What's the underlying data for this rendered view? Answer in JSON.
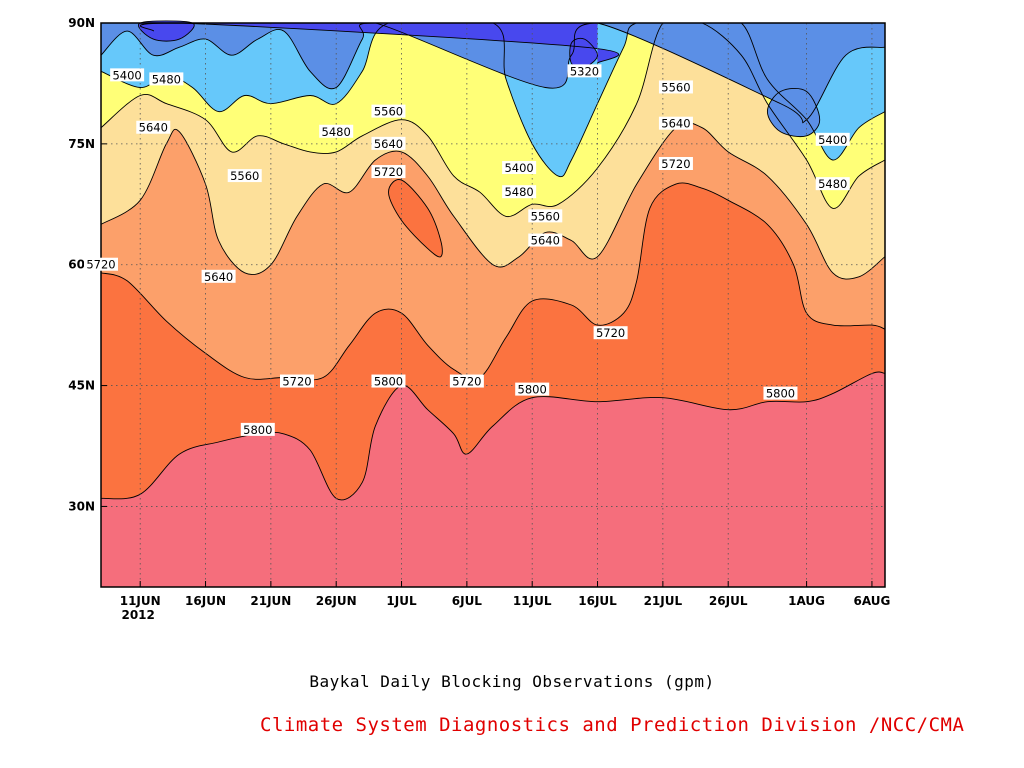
{
  "chart_data": {
    "type": "heatmap",
    "subtype": "filled-contour",
    "title": "Baykal Daily Blocking Observations (gpm)",
    "credit": "Climate System Diagnostics and Prediction Division /NCC/CMA",
    "x_axis": {
      "kind": "date",
      "range": [
        "2012-06-08",
        "2012-08-07"
      ],
      "ticks": [
        {
          "date": "2012-06-11",
          "label": "11JUN",
          "sublabel": "2012"
        },
        {
          "date": "2012-06-16",
          "label": "16JUN"
        },
        {
          "date": "2012-06-21",
          "label": "21JUN"
        },
        {
          "date": "2012-06-26",
          "label": "26JUN"
        },
        {
          "date": "2012-07-01",
          "label": "1JUL"
        },
        {
          "date": "2012-07-06",
          "label": "6JUL"
        },
        {
          "date": "2012-07-11",
          "label": "11JUL"
        },
        {
          "date": "2012-07-16",
          "label": "16JUL"
        },
        {
          "date": "2012-07-21",
          "label": "21JUL"
        },
        {
          "date": "2012-07-26",
          "label": "26JUL"
        },
        {
          "date": "2012-08-01",
          "label": "1AUG"
        },
        {
          "date": "2012-08-06",
          "label": "6AUG"
        }
      ]
    },
    "y_axis": {
      "kind": "latitude",
      "range": [
        20,
        90
      ],
      "ticks": [
        {
          "value": 30,
          "label": "30N"
        },
        {
          "value": 45,
          "label": "45N"
        },
        {
          "value": 60,
          "label": "60N"
        },
        {
          "value": 75,
          "label": "75N"
        },
        {
          "value": 90,
          "label": "90N"
        }
      ]
    },
    "grid": true,
    "levels": [
      5320,
      5400,
      5480,
      5560,
      5640,
      5720,
      5800
    ],
    "fill_colors": [
      "#4848ee",
      "#5b8fe6",
      "#66c8fa",
      "#ffff77",
      "#fde09a",
      "#fca06a",
      "#fb7340",
      "#f56e7c"
    ],
    "contours": [
      {
        "level": 5800,
        "points": [
          [
            "2012-06-08",
            31
          ],
          [
            "2012-06-11",
            31.5
          ],
          [
            "2012-06-14",
            36.5
          ],
          [
            "2012-06-17",
            38
          ],
          [
            "2012-06-20",
            39
          ],
          [
            "2012-06-22",
            39
          ],
          [
            "2012-06-24",
            37
          ],
          [
            "2012-06-26",
            31
          ],
          [
            "2012-06-28",
            33
          ],
          [
            "2012-06-29",
            40
          ],
          [
            "2012-07-01",
            45
          ],
          [
            "2012-07-03",
            42
          ],
          [
            "2012-07-05",
            39
          ],
          [
            "2012-07-06",
            36.5
          ],
          [
            "2012-07-08",
            40
          ],
          [
            "2012-07-11",
            43.5
          ],
          [
            "2012-07-16",
            43
          ],
          [
            "2012-07-21",
            43.5
          ],
          [
            "2012-07-26",
            42
          ],
          [
            "2012-07-29",
            43
          ],
          [
            "2012-08-01",
            43
          ],
          [
            "2012-08-03",
            44
          ],
          [
            "2012-08-06",
            46.5
          ],
          [
            "2012-08-07",
            46.5
          ]
        ]
      },
      {
        "level": 5720,
        "points": [
          [
            "2012-06-08",
            59
          ],
          [
            "2012-06-10",
            58
          ],
          [
            "2012-06-13",
            53
          ],
          [
            "2012-06-16",
            49
          ],
          [
            "2012-06-19",
            46
          ],
          [
            "2012-06-22",
            46
          ],
          [
            "2012-06-25",
            46
          ],
          [
            "2012-06-27",
            50
          ],
          [
            "2012-06-29",
            54
          ],
          [
            "2012-07-01",
            54
          ],
          [
            "2012-07-03",
            50
          ],
          [
            "2012-07-05",
            47
          ],
          [
            "2012-07-07",
            46
          ],
          [
            "2012-07-09",
            51
          ],
          [
            "2012-07-11",
            55.5
          ],
          [
            "2012-07-14",
            55
          ],
          [
            "2012-07-16",
            52.5
          ],
          [
            "2012-07-18",
            54
          ],
          [
            "2012-07-19",
            58
          ],
          [
            "2012-07-20",
            67
          ],
          [
            "2012-07-22",
            70
          ],
          [
            "2012-07-24",
            69.5
          ],
          [
            "2012-07-26",
            68
          ],
          [
            "2012-07-29",
            65
          ],
          [
            "2012-07-31",
            60
          ],
          [
            "2012-08-01",
            54
          ],
          [
            "2012-08-03",
            52.5
          ],
          [
            "2012-08-06",
            52.5
          ],
          [
            "2012-08-07",
            52
          ]
        ]
      },
      {
        "level": 5640,
        "points": [
          [
            "2012-06-08",
            65
          ],
          [
            "2012-06-11",
            68
          ],
          [
            "2012-06-13",
            75
          ],
          [
            "2012-06-14",
            76.5
          ],
          [
            "2012-06-16",
            70
          ],
          [
            "2012-06-17",
            63
          ],
          [
            "2012-06-19",
            59
          ],
          [
            "2012-06-21",
            60
          ],
          [
            "2012-06-23",
            66
          ],
          [
            "2012-06-25",
            70
          ],
          [
            "2012-06-27",
            69
          ],
          [
            "2012-06-29",
            73
          ],
          [
            "2012-07-01",
            74
          ],
          [
            "2012-07-03",
            71
          ],
          [
            "2012-07-05",
            66
          ],
          [
            "2012-07-08",
            60
          ],
          [
            "2012-07-10",
            61
          ],
          [
            "2012-07-12",
            64
          ],
          [
            "2012-07-14",
            63
          ],
          [
            "2012-07-16",
            61
          ],
          [
            "2012-07-19",
            70
          ],
          [
            "2012-07-22",
            77
          ],
          [
            "2012-07-24",
            77
          ],
          [
            "2012-07-26",
            74
          ],
          [
            "2012-07-29",
            71
          ],
          [
            "2012-08-01",
            65
          ],
          [
            "2012-08-03",
            59
          ],
          [
            "2012-08-05",
            58.5
          ],
          [
            "2012-08-07",
            61
          ]
        ]
      },
      {
        "level": 5560,
        "points": [
          [
            "2012-06-08",
            77
          ],
          [
            "2012-06-11",
            81
          ],
          [
            "2012-06-13",
            80
          ],
          [
            "2012-06-16",
            78
          ],
          [
            "2012-06-18",
            74
          ],
          [
            "2012-06-20",
            76
          ],
          [
            "2012-06-22",
            75
          ],
          [
            "2012-06-24",
            74
          ],
          [
            "2012-06-26",
            74
          ],
          [
            "2012-06-28",
            76
          ],
          [
            "2012-07-01",
            78
          ],
          [
            "2012-07-03",
            76
          ],
          [
            "2012-07-05",
            71
          ],
          [
            "2012-07-07",
            69
          ],
          [
            "2012-07-09",
            66
          ],
          [
            "2012-07-11",
            67.5
          ],
          [
            "2012-07-13",
            67.5
          ],
          [
            "2012-07-16",
            72
          ],
          [
            "2012-07-19",
            80
          ],
          [
            "2012-07-21",
            90
          ],
          [
            "2012-07-24",
            90
          ],
          [
            "2012-07-27",
            86
          ],
          [
            "2012-07-29",
            80
          ],
          [
            "2012-08-01",
            73
          ],
          [
            "2012-08-03",
            67
          ],
          [
            "2012-08-05",
            71
          ],
          [
            "2012-08-07",
            73
          ]
        ]
      },
      {
        "level": 5480,
        "points": [
          [
            "2012-06-08",
            84
          ],
          [
            "2012-06-11",
            82
          ],
          [
            "2012-06-13",
            83.5
          ],
          [
            "2012-06-15",
            82
          ],
          [
            "2012-06-17",
            79
          ],
          [
            "2012-06-19",
            81
          ],
          [
            "2012-06-21",
            80
          ],
          [
            "2012-06-24",
            81
          ],
          [
            "2012-06-26",
            80
          ],
          [
            "2012-06-28",
            84
          ],
          [
            "2012-06-30",
            90
          ],
          [
            "2012-07-08",
            90
          ],
          [
            "2012-07-09",
            83
          ],
          [
            "2012-07-11",
            75
          ],
          [
            "2012-07-13",
            71
          ],
          [
            "2012-07-14",
            73
          ],
          [
            "2012-07-16",
            80
          ],
          [
            "2012-07-18",
            87
          ],
          [
            "2012-07-19",
            90
          ],
          [
            "2012-07-24",
            90
          ],
          [
            "2012-07-27",
            90
          ],
          [
            "2012-07-29",
            83
          ],
          [
            "2012-08-01",
            78
          ],
          [
            "2012-08-03",
            73
          ],
          [
            "2012-08-05",
            77
          ],
          [
            "2012-08-07",
            79
          ]
        ]
      },
      {
        "level": 5400,
        "points": [
          [
            "2012-06-08",
            86
          ],
          [
            "2012-06-10",
            89
          ],
          [
            "2012-06-12",
            86
          ],
          [
            "2012-06-14",
            87
          ],
          [
            "2012-06-16",
            88
          ],
          [
            "2012-06-18",
            86
          ],
          [
            "2012-06-20",
            88
          ],
          [
            "2012-06-22",
            89
          ],
          [
            "2012-06-24",
            84
          ],
          [
            "2012-06-26",
            82
          ],
          [
            "2012-06-28",
            88
          ],
          [
            "2012-06-29",
            90
          ],
          [
            "2012-07-12",
            82
          ],
          [
            "2012-07-14",
            86
          ],
          [
            "2012-07-16",
            90
          ],
          [
            "2012-07-30",
            80
          ],
          [
            "2012-08-01",
            78
          ],
          [
            "2012-08-04",
            86
          ],
          [
            "2012-08-07",
            87
          ]
        ]
      },
      {
        "level": 5320,
        "points": [
          [
            "2012-06-12",
            89
          ],
          [
            "2012-06-14",
            90
          ],
          [
            "2012-07-15",
            87
          ],
          [
            "2012-07-16",
            85
          ]
        ]
      }
    ],
    "annotations": [
      {
        "text": "5400",
        "date": "2012-06-10",
        "lat": 83.5
      },
      {
        "text": "5480",
        "date": "2012-06-13",
        "lat": 83
      },
      {
        "text": "5640",
        "date": "2012-06-12",
        "lat": 77
      },
      {
        "text": "5560",
        "date": "2012-06-19",
        "lat": 71
      },
      {
        "text": "5480",
        "date": "2012-06-26",
        "lat": 76.5
      },
      {
        "text": "5560",
        "date": "2012-06-30",
        "lat": 79
      },
      {
        "text": "5640",
        "date": "2012-06-30",
        "lat": 75
      },
      {
        "text": "5720",
        "date": "2012-06-30",
        "lat": 71.5
      },
      {
        "text": "5720",
        "date": "2012-06-08",
        "lat": 60
      },
      {
        "text": "5640",
        "date": "2012-06-17",
        "lat": 58.5
      },
      {
        "text": "5720",
        "date": "2012-06-23",
        "lat": 45.5
      },
      {
        "text": "5800",
        "date": "2012-06-30",
        "lat": 45.5
      },
      {
        "text": "5720",
        "date": "2012-07-06",
        "lat": 45.5
      },
      {
        "text": "5800",
        "date": "2012-06-20",
        "lat": 39.5
      },
      {
        "text": "5800",
        "date": "2012-07-11",
        "lat": 44.5
      },
      {
        "text": "5400",
        "date": "2012-07-10",
        "lat": 72
      },
      {
        "text": "5480",
        "date": "2012-07-10",
        "lat": 69
      },
      {
        "text": "5560",
        "date": "2012-07-12",
        "lat": 66
      },
      {
        "text": "5640",
        "date": "2012-07-12",
        "lat": 63
      },
      {
        "text": "5720",
        "date": "2012-07-17",
        "lat": 51.5
      },
      {
        "text": "5320",
        "date": "2012-07-15",
        "lat": 84
      },
      {
        "text": "5560",
        "date": "2012-07-22",
        "lat": 82
      },
      {
        "text": "5640",
        "date": "2012-07-22",
        "lat": 77.5
      },
      {
        "text": "5720",
        "date": "2012-07-22",
        "lat": 72.5
      },
      {
        "text": "5800",
        "date": "2012-07-30",
        "lat": 44
      },
      {
        "text": "5400",
        "date": "2012-08-03",
        "lat": 75.5
      },
      {
        "text": "5480",
        "date": "2012-08-03",
        "lat": 70
      }
    ],
    "closed_contours": [
      {
        "level": 5720,
        "kind": "high",
        "center_date": "2012-07-02",
        "center_lat": 65.5,
        "points": [
          [
            "2012-06-30",
            69
          ],
          [
            "2012-07-01",
            70.5
          ],
          [
            "2012-07-03",
            67
          ],
          [
            "2012-07-04",
            63
          ],
          [
            "2012-07-04",
            61
          ],
          [
            "2012-07-03",
            62
          ],
          [
            "2012-07-01",
            65.5
          ]
        ]
      },
      {
        "level": 5400,
        "kind": "low",
        "center_date": "2012-07-31",
        "center_lat": 78,
        "points": [
          [
            "2012-07-30",
            81.5
          ],
          [
            "2012-08-01",
            81.5
          ],
          [
            "2012-08-02",
            78
          ],
          [
            "2012-08-01",
            76
          ],
          [
            "2012-07-30",
            76.5
          ],
          [
            "2012-07-29",
            79
          ]
        ]
      },
      {
        "level": 5320,
        "kind": "low",
        "center_date": "2012-07-15",
        "center_lat": 86,
        "points": [
          [
            "2012-07-14",
            87.5
          ],
          [
            "2012-07-15",
            88
          ],
          [
            "2012-07-16",
            86
          ],
          [
            "2012-07-15",
            84.5
          ],
          [
            "2012-07-14",
            85
          ]
        ]
      },
      {
        "level": 5320,
        "kind": "low",
        "center_date": "2012-06-13",
        "center_lat": 89,
        "points": [
          [
            "2012-06-11",
            90
          ],
          [
            "2012-06-15",
            90
          ],
          [
            "2012-06-14",
            88
          ],
          [
            "2012-06-12",
            88
          ]
        ]
      }
    ]
  }
}
